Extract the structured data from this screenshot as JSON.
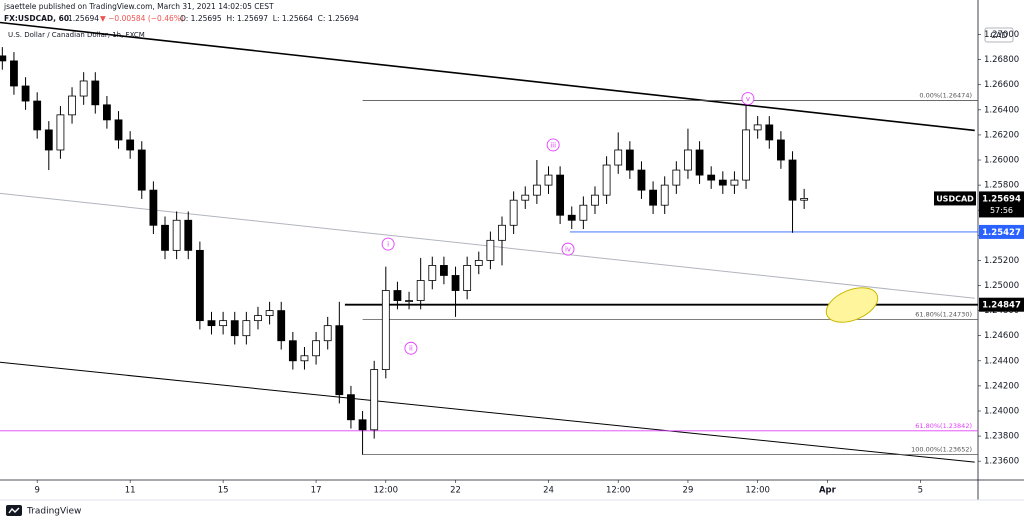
{
  "header": {
    "line1": "jsaettele published on TradingView.com, March 31, 2021 14:02:05 CEST",
    "symbol": "FX:USDCAD, 60",
    "last": "1.25694",
    "change": "▼ −0.00584 (−0.46%)",
    "ohlc": "O: 1.25695  H: 1.25697  L: 1.25664  C: 1.25694"
  },
  "footer": {
    "brand": "TradingView"
  },
  "chart_data": {
    "type": "candlestick",
    "title": "U.S. Dollar / Canadian Dollar, 1h, FXCM",
    "currency": "CAD",
    "x": [
      -0.75,
      -0.5,
      -0.25,
      0,
      0.25,
      0.5,
      0.75,
      1,
      1.25,
      1.5,
      1.75,
      2,
      2.25,
      2.5,
      2.75,
      3,
      3.25,
      3.5,
      3.75,
      4,
      4.25,
      4.5,
      4.75,
      5,
      5.25,
      5.5,
      5.75,
      6,
      6.25,
      6.5,
      6.75,
      7,
      7.25,
      7.5,
      7.75,
      8,
      8.25,
      8.5,
      8.75,
      9,
      9.25,
      9.5,
      9.75,
      10,
      10.25,
      10.5,
      10.75,
      11,
      11.25,
      11.5,
      11.75,
      12,
      12.25,
      12.5,
      12.75,
      13,
      13.25,
      13.5,
      13.75,
      14,
      14.25,
      14.5,
      14.75,
      15,
      15.25,
      15.5,
      15.75,
      16,
      16.25,
      16.5
    ],
    "series": [
      {
        "name": "USDCAD",
        "up_color": "#ffffff",
        "down_color": "#000000",
        "open": [
          1.2683,
          1.2679,
          1.2659,
          1.2647,
          1.2624,
          1.2608,
          1.2636,
          1.2651,
          1.2663,
          1.2644,
          1.2632,
          1.2616,
          1.2608,
          1.2576,
          1.2548,
          1.2528,
          1.2552,
          1.2528,
          1.2472,
          1.2468,
          1.2472,
          1.246,
          1.2472,
          1.2476,
          1.248,
          1.2456,
          1.244,
          1.2444,
          1.2456,
          1.2468,
          1.2413,
          1.2393,
          1.2385,
          1.2433,
          1.2496,
          1.2488,
          1.2488,
          1.2504,
          1.2516,
          1.2508,
          1.2496,
          1.2516,
          1.252,
          1.2536,
          1.2548,
          1.2568,
          1.2572,
          1.258,
          1.2588,
          1.2556,
          1.2552,
          1.2564,
          1.2572,
          1.2596,
          1.2608,
          1.2592,
          1.2576,
          1.2564,
          1.258,
          1.2592,
          1.2608,
          1.2588,
          1.2584,
          1.258,
          1.2584,
          1.2624,
          1.2628,
          1.2616,
          1.26,
          1.2568
        ],
        "high": [
          1.269,
          1.2686,
          1.2666,
          1.2654,
          1.2631,
          1.2643,
          1.2658,
          1.267,
          1.267,
          1.2651,
          1.2639,
          1.2623,
          1.2615,
          1.2583,
          1.2555,
          1.2559,
          1.2559,
          1.2535,
          1.2479,
          1.2479,
          1.2479,
          1.2479,
          1.2483,
          1.2487,
          1.2487,
          1.2463,
          1.2451,
          1.2463,
          1.2475,
          1.2487,
          1.242,
          1.24,
          1.244,
          1.2515,
          1.2503,
          1.2495,
          1.2522,
          1.2523,
          1.2523,
          1.2515,
          1.2523,
          1.2527,
          1.2543,
          1.2555,
          1.2575,
          1.2579,
          1.26,
          1.2595,
          1.2595,
          1.2563,
          1.2571,
          1.2579,
          1.2603,
          1.2622,
          1.2615,
          1.2599,
          1.2583,
          1.2587,
          1.2599,
          1.2625,
          1.2615,
          1.2595,
          1.2591,
          1.2591,
          1.2647,
          1.2635,
          1.2635,
          1.2623,
          1.2607,
          1.2577
        ],
        "low": [
          1.2672,
          1.2652,
          1.264,
          1.2617,
          1.2592,
          1.2601,
          1.2629,
          1.2644,
          1.2637,
          1.2625,
          1.2609,
          1.2601,
          1.2569,
          1.2541,
          1.2521,
          1.2521,
          1.2521,
          1.2465,
          1.2461,
          1.2461,
          1.2453,
          1.2453,
          1.2465,
          1.2469,
          1.2449,
          1.2433,
          1.2433,
          1.2437,
          1.2449,
          1.2406,
          1.2386,
          1.23652,
          1.2378,
          1.2426,
          1.2481,
          1.2481,
          1.2481,
          1.2497,
          1.2501,
          1.2475,
          1.2489,
          1.2509,
          1.2513,
          1.2516,
          1.2541,
          1.2561,
          1.2565,
          1.2573,
          1.2549,
          1.2545,
          1.2545,
          1.2557,
          1.2565,
          1.2589,
          1.2585,
          1.2569,
          1.2557,
          1.2557,
          1.2573,
          1.2585,
          1.2581,
          1.2577,
          1.2573,
          1.2573,
          1.2577,
          1.2617,
          1.2609,
          1.2593,
          1.2542,
          1.2561
        ],
        "close": [
          1.2679,
          1.2659,
          1.2647,
          1.2624,
          1.2608,
          1.2636,
          1.2651,
          1.2663,
          1.2644,
          1.2632,
          1.2616,
          1.2608,
          1.2576,
          1.2548,
          1.2528,
          1.2552,
          1.2528,
          1.2472,
          1.2468,
          1.2472,
          1.246,
          1.2472,
          1.2476,
          1.248,
          1.2456,
          1.244,
          1.2444,
          1.2456,
          1.2468,
          1.2413,
          1.2393,
          1.2385,
          1.2433,
          1.2496,
          1.2488,
          1.2488,
          1.2504,
          1.2516,
          1.2508,
          1.2496,
          1.2516,
          1.252,
          1.2536,
          1.2548,
          1.2568,
          1.2572,
          1.258,
          1.2588,
          1.2556,
          1.2552,
          1.2564,
          1.2572,
          1.2596,
          1.2608,
          1.2592,
          1.2576,
          1.2564,
          1.258,
          1.2592,
          1.2608,
          1.2588,
          1.2584,
          1.258,
          1.2584,
          1.2624,
          1.2628,
          1.2616,
          1.26,
          1.2568,
          1.25694
        ]
      }
    ],
    "xlim": [
      -0.8,
      20.24
    ],
    "xticks": [
      {
        "value": 0,
        "label": "9"
      },
      {
        "value": 2,
        "label": "11"
      },
      {
        "value": 4,
        "label": "15"
      },
      {
        "value": 6,
        "label": "17"
      },
      {
        "value": 7.5,
        "label": "12:00"
      },
      {
        "value": 9,
        "label": "22"
      },
      {
        "value": 11,
        "label": "24"
      },
      {
        "value": 12.5,
        "label": "12:00"
      },
      {
        "value": 14,
        "label": "29"
      },
      {
        "value": 15.5,
        "label": "12:00"
      },
      {
        "value": 17,
        "label": "Apr",
        "bold": true
      },
      {
        "value": 19,
        "label": "5"
      }
    ],
    "ylim": [
      1.2345,
      1.271
    ],
    "yticks": [
      {
        "value": 1.27,
        "label": "1.27000"
      },
      {
        "value": 1.268,
        "label": "1.26800"
      },
      {
        "value": 1.266,
        "label": "1.26600"
      },
      {
        "value": 1.264,
        "label": "1.26400"
      },
      {
        "value": 1.262,
        "label": "1.26200"
      },
      {
        "value": 1.26,
        "label": "1.26000"
      },
      {
        "value": 1.258,
        "label": "1.25800"
      },
      {
        "value": 1.256,
        "label": "1.25600"
      },
      {
        "value": 1.254,
        "label": "1.25400"
      },
      {
        "value": 1.252,
        "label": "1.25200"
      },
      {
        "value": 1.25,
        "label": "1.25000"
      },
      {
        "value": 1.248,
        "label": "1.24800"
      },
      {
        "value": 1.246,
        "label": "1.24600"
      },
      {
        "value": 1.244,
        "label": "1.24400"
      },
      {
        "value": 1.242,
        "label": "1.24200"
      },
      {
        "value": 1.24,
        "label": "1.24000"
      },
      {
        "value": 1.238,
        "label": "1.23800"
      },
      {
        "value": 1.236,
        "label": "1.23600"
      }
    ],
    "last_price": {
      "value": 1.25694,
      "label": "1.25694",
      "countdown": "57:56"
    },
    "trendlines": [
      {
        "x": [
          -0.8,
          20.17
        ],
        "y": [
          1.27096,
          1.26236
        ],
        "color": "#000000",
        "thick": true
      },
      {
        "x": [
          -0.8,
          20.17
        ],
        "y": [
          1.24388,
          1.23592
        ],
        "color": "#000000"
      },
      {
        "x": [
          -0.8,
          20.17
        ],
        "y": [
          1.25734,
          1.24898
        ],
        "color": "#b2b5be"
      }
    ],
    "levels": [
      {
        "value": 1.26474,
        "label": "0.00%(1.26474)",
        "x_start": 7.0,
        "color": "#555555"
      },
      {
        "value": 1.2473,
        "label": "61.80%(1.24730)",
        "x_start": 7.0,
        "color": "#555555"
      },
      {
        "value": 1.23652,
        "label": "100.00%(1.23652)",
        "x_start": 7.0,
        "color": "#555555"
      },
      {
        "value": 1.23842,
        "label": "61.80%(1.23842)",
        "x_start": -0.8,
        "color": "#e040fb"
      },
      {
        "value": 1.25427,
        "price_label": "1.25427",
        "x_start": 11.46,
        "color": "#2962ff"
      },
      {
        "value": 1.24847,
        "price_label": "1.24847",
        "x_start": 6.62,
        "color": "#000000",
        "thick": true
      }
    ],
    "wave_labels": [
      {
        "label": "i",
        "x": 7.55,
        "y": 1.2533
      },
      {
        "label": "ii",
        "x": 8.04,
        "y": 1.245
      },
      {
        "label": "iii",
        "x": 11.1,
        "y": 1.2612
      },
      {
        "label": "iv",
        "x": 11.42,
        "y": 1.2529
      },
      {
        "label": "v",
        "x": 15.29,
        "y": 1.2649
      }
    ],
    "wave_color": "#e040fb"
  }
}
